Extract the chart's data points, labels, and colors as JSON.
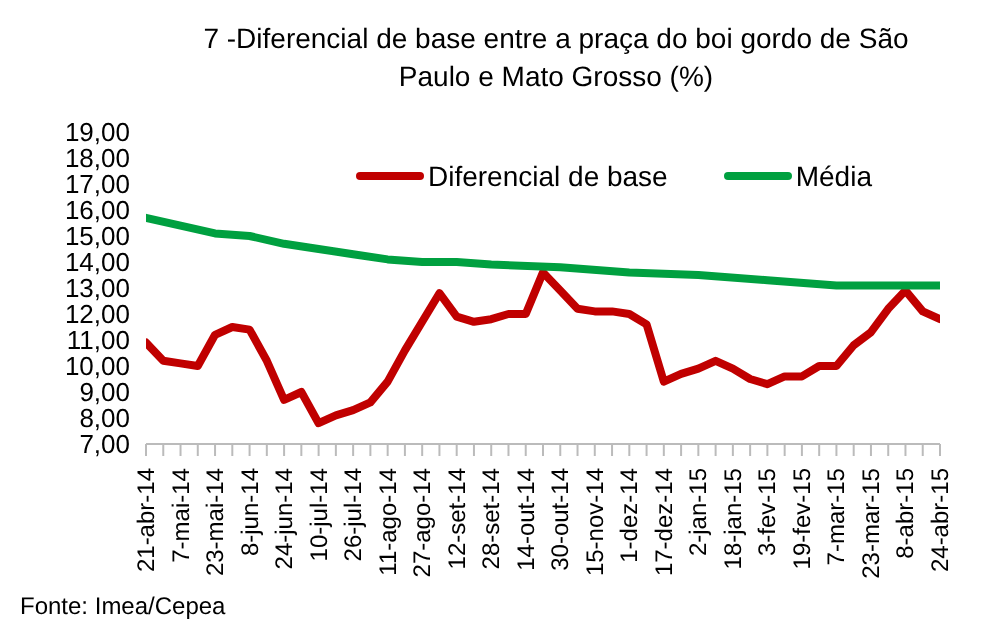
{
  "chart_data": {
    "type": "line",
    "title": "7 -Diferencial de base entre a praça do boi gordo de São\nPaulo e Mato Grosso (%)",
    "categories": [
      "21-abr-14",
      null,
      "7-mai-14",
      null,
      "23-mai-14",
      null,
      "8-jun-14",
      null,
      "24-jun-14",
      null,
      "10-jul-14",
      null,
      "26-jul-14",
      null,
      "11-ago-14",
      null,
      "27-ago-14",
      null,
      "12-set-14",
      null,
      "28-set-14",
      null,
      "14-out-14",
      null,
      "30-out-14",
      null,
      "15-nov-14",
      null,
      "1-dez-14",
      null,
      "17-dez-14",
      null,
      "2-jan-15",
      null,
      "18-jan-15",
      null,
      "3-fev-15",
      null,
      "19-fev-15",
      null,
      "7-mar-15",
      null,
      "23-mar-15",
      null,
      "8-abr-15",
      null,
      "24-abr-15"
    ],
    "series": [
      {
        "name": "Diferencial de base",
        "color": "#c00000",
        "values": [
          10.9,
          10.2,
          10.1,
          10.0,
          11.2,
          11.5,
          11.4,
          10.2,
          8.7,
          9.0,
          7.8,
          8.1,
          8.3,
          8.6,
          9.4,
          10.6,
          11.7,
          12.8,
          11.9,
          11.7,
          11.8,
          12.0,
          12.0,
          13.6,
          12.9,
          12.2,
          12.1,
          12.1,
          12.0,
          11.6,
          9.4,
          9.7,
          9.9,
          10.2,
          9.9,
          9.5,
          9.3,
          9.6,
          9.6,
          10.0,
          10.0,
          10.8,
          11.3,
          12.2,
          12.9,
          12.1,
          11.8
        ]
      },
      {
        "name": "Média",
        "color": "#00a040",
        "values": [
          15.7,
          null,
          15.4,
          null,
          15.1,
          null,
          15.0,
          null,
          14.7,
          null,
          14.5,
          null,
          14.3,
          null,
          14.1,
          null,
          14.0,
          null,
          14.0,
          null,
          13.9,
          null,
          null,
          null,
          13.8,
          null,
          null,
          null,
          13.6,
          null,
          null,
          null,
          13.5,
          null,
          null,
          null,
          13.3,
          null,
          null,
          null,
          13.1,
          null,
          null,
          null,
          13.1,
          null,
          13.1
        ]
      }
    ],
    "ylim": [
      7,
      19
    ],
    "yticks": [
      {
        "value": 7,
        "label": "7,00"
      },
      {
        "value": 8,
        "label": "8,00"
      },
      {
        "value": 9,
        "label": "9,00"
      },
      {
        "value": 10,
        "label": "10,00"
      },
      {
        "value": 11,
        "label": "11,00"
      },
      {
        "value": 12,
        "label": "12,00"
      },
      {
        "value": 13,
        "label": "13,00"
      },
      {
        "value": 14,
        "label": "14,00"
      },
      {
        "value": 15,
        "label": "15,00"
      },
      {
        "value": 16,
        "label": "16,00"
      },
      {
        "value": 17,
        "label": "17,00"
      },
      {
        "value": 18,
        "label": "18,00"
      },
      {
        "value": 19,
        "label": "19,00"
      }
    ],
    "grid": false,
    "legend": "top right",
    "marker": "none",
    "line_style": "solid",
    "annotations": [
      "Fonte: Imea/Cepea"
    ]
  }
}
